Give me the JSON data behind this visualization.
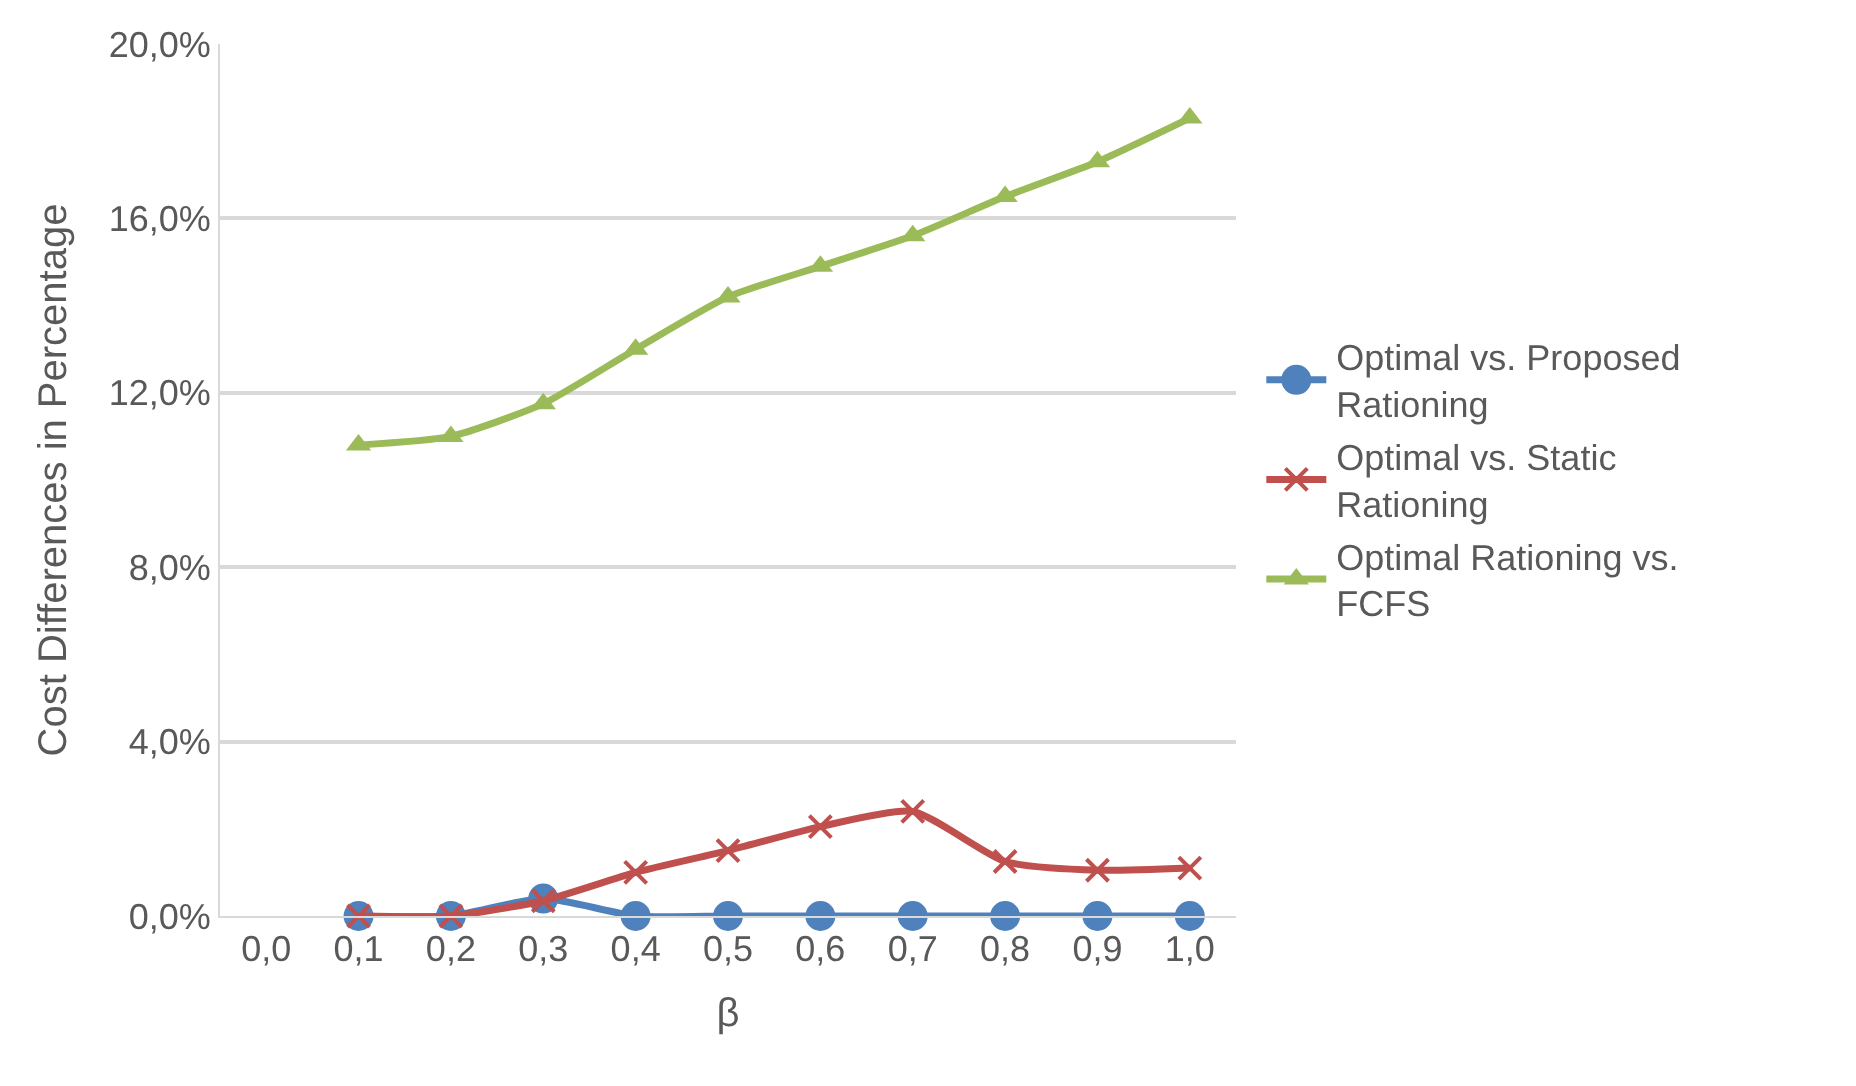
{
  "chart_data": {
    "type": "line",
    "xlabel": "β",
    "ylabel": "Cost Differences in Percentage",
    "categories": [
      "0,0",
      "0,1",
      "0,2",
      "0,3",
      "0,4",
      "0,5",
      "0,6",
      "0,7",
      "0,8",
      "0,9",
      "1,0"
    ],
    "series": [
      {
        "name": "Optimal vs. Proposed Rationing",
        "color": "#4f81bd",
        "marker": "circle",
        "values": [
          null,
          0,
          0,
          0.4,
          0,
          0,
          0,
          0,
          0,
          0,
          0
        ]
      },
      {
        "name": "Optimal vs. Static Rationing",
        "color": "#c0504d",
        "marker": "cross",
        "values": [
          null,
          0,
          0,
          0.35,
          1.0,
          1.5,
          2.05,
          2.4,
          1.25,
          1.05,
          1.1
        ]
      },
      {
        "name": "Optimal Rationing vs. FCFS",
        "color": "#9bbb59",
        "marker": "triangle",
        "values": [
          null,
          10.8,
          11.0,
          11.75,
          13.0,
          14.2,
          14.9,
          15.6,
          16.5,
          17.3,
          18.3
        ]
      }
    ],
    "ylim": [
      0,
      20
    ],
    "yticks": [
      {
        "value": 0,
        "label": "0,0%"
      },
      {
        "value": 4,
        "label": "4,0%"
      },
      {
        "value": 8,
        "label": "8,0%"
      },
      {
        "value": 12,
        "label": "12,0%"
      },
      {
        "value": 16,
        "label": "16,0%"
      },
      {
        "value": 20,
        "label": "20,0%"
      }
    ],
    "grid": "y",
    "legend": "right",
    "line_style": "solid"
  }
}
